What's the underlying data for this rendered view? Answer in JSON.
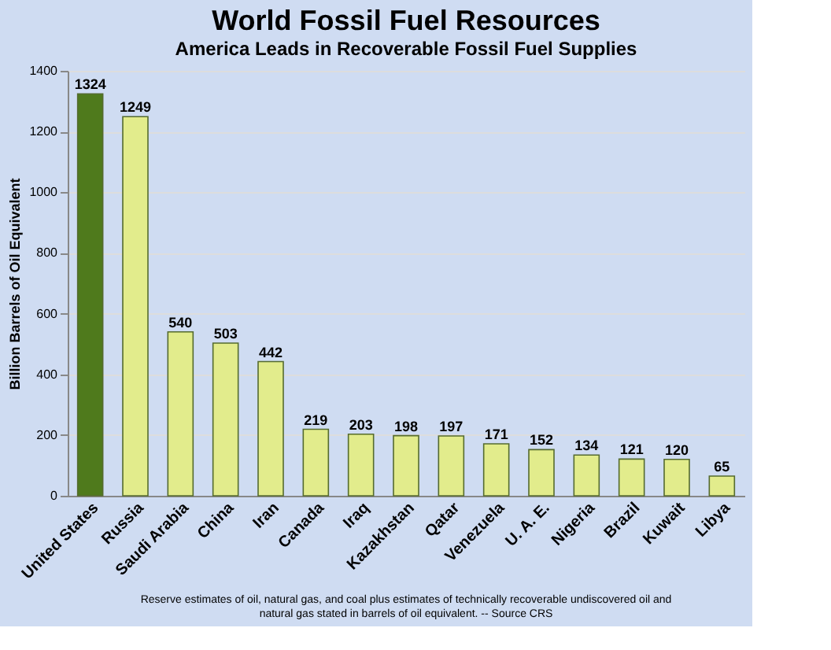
{
  "chart_data": {
    "type": "bar",
    "title": "World Fossil Fuel Resources",
    "subtitle": "America Leads in Recoverable Fossil Fuel Supplies",
    "ylabel": "Billion Barrels of Oil Equivalent",
    "categories": [
      "United States",
      "Russia",
      "Saudi Arabia",
      "China",
      "Iran",
      "Canada",
      "Iraq",
      "Kazakhstan",
      "Qatar",
      "Venezuela",
      "U. A. E.",
      "Nigeria",
      "Brazil",
      "Kuwait",
      "Libya"
    ],
    "values": [
      1324,
      1249,
      540,
      503,
      442,
      219,
      203,
      198,
      197,
      171,
      152,
      134,
      121,
      120,
      65
    ],
    "colors": [
      "#4f7a1c",
      "#e2ec8c",
      "#e2ec8c",
      "#e2ec8c",
      "#e2ec8c",
      "#e2ec8c",
      "#e2ec8c",
      "#e2ec8c",
      "#e2ec8c",
      "#e2ec8c",
      "#e2ec8c",
      "#e2ec8c",
      "#e2ec8c",
      "#e2ec8c",
      "#e2ec8c"
    ],
    "ylim": [
      0,
      1400
    ],
    "yticks": [
      0,
      200,
      400,
      600,
      800,
      1000,
      1200,
      1400
    ],
    "grid": "y",
    "data_labels": true,
    "annotations": [
      "Reserve estimates of oil, natural gas, and coal plus estimates of technically recoverable undiscovered oil and natural gas stated in barrels of oil equivalent. -- Source CRS"
    ]
  }
}
